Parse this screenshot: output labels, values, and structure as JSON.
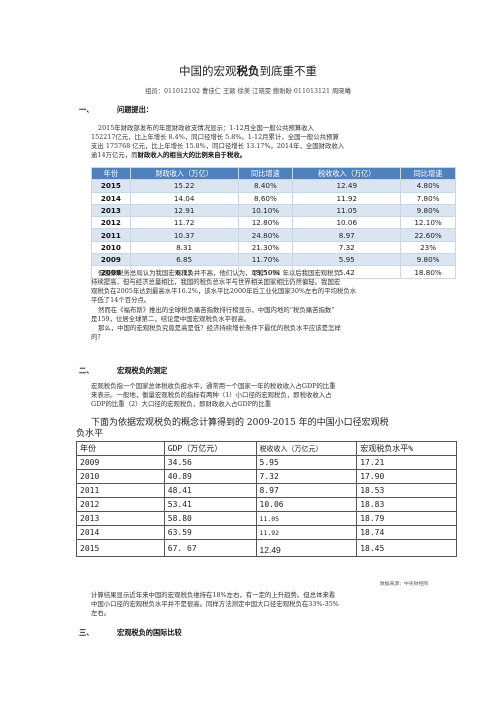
{
  "title_prefix": "中国的宏观",
  "title_bold": "税负",
  "title_suffix": "到底重不重",
  "authors": "组员：011012102 曹佳仁  王颖  徐美  江晓雯  鲍盼盼  011013121 周晓曦",
  "section1": {
    "num": "一、",
    "title": "问题提出："
  },
  "para1_lines": [
    "2015年财政部发布的年度财政收支情况显示：1-12月全国一般公共预算收入",
    "152217亿元，比上年增长 8.4%，同口径增长 5.8%。1-12月累计，全国一般公共预算",
    "支出 175768 亿元，比上年增长 15.8%，同口径增长 13.17%。2014年，全国财政收入",
    "逾14万亿元，而"
  ],
  "para1_bold": "财政收入的相当大的比例来自于税收。",
  "table1": {
    "headers": [
      "年份",
      "财政收入（万亿）",
      "同比增速",
      "税收收入（万亿）",
      "同比增速"
    ],
    "rows": [
      [
        "2015",
        "15.22",
        "8.40%",
        "12.49",
        "4.80%"
      ],
      [
        "2014",
        "14.04",
        "8.60%",
        "11.92",
        "7.80%"
      ],
      [
        "2013",
        "12.91",
        "10.10%",
        "11.05",
        "9.80%"
      ],
      [
        "2012",
        "11.72",
        "12.80%",
        "10.06",
        "12.10%"
      ],
      [
        "2011",
        "10.37",
        "24.80%",
        "8.97",
        "22.60%"
      ],
      [
        "2010",
        "8.31",
        "21.30%",
        "7.32",
        "23%"
      ],
      [
        "2009",
        "6.85",
        "11.70%",
        "5.95",
        "9.80%"
      ],
      [
        "2008",
        "6.13",
        "19.50%",
        "5.42",
        "18.80%"
      ]
    ]
  },
  "para2_lines": [
    "但国家税务总局认为我国宏观税负并不高，他们认为，尽管1994 年以后我国宏观税负",
    "持续提高，但与经济总量相比，我国的税负总水平与世界相关国家相比仍然偏轻。我国宏",
    "观税负在2005年达到最高水平16.2%，该水平比2000年后工业化国家30%左右的平均税负水",
    "平低了14个百分点。"
  ],
  "para3_lines": [
    "然而在《福布斯》推出的全球税负痛苦指数排行榜显示，中国内地的“税负痛苦指数”",
    "是159，位居全球第二，结论是中国宏观税负水平很高。"
  ],
  "para4_lines": [
    "那么，中国的宏观税负究竟是高是低？经济持续增长条件下最优的税负水平应该是怎样",
    "的？"
  ],
  "section2": {
    "num": "二、",
    "title": "宏观税负的测定"
  },
  "para5_lines": [
    "宏观税负指一个国家总体税收负担水平，通常用一个国家一年的税收收入占GDP的比重",
    "来表示。一般地，衡量宏观税负的指标有两种（1）小口径的宏观税负，即税收收入占",
    "GDP的比重（2）大口径的宏观税负，即财政收入占GDP的比重"
  ],
  "caption2_lines": [
    "下面为依据宏观税负的概念计算得到的 2009-2015 年的中国小口径宏观税",
    "负水平"
  ],
  "table2": {
    "headers": [
      "年份",
      "GDP（万亿元）",
      "税收收入（万亿元）",
      "宏观税负水平%"
    ],
    "rows": [
      [
        "2009",
        "34.56",
        "5.95",
        "17.21"
      ],
      [
        "2010",
        "40.89",
        "7.32",
        "17.90"
      ],
      [
        "2011",
        "48.41",
        "8.97",
        "18.53"
      ],
      [
        "2012",
        "53.41",
        "10.06",
        "18.83"
      ],
      [
        "2013",
        "58.80",
        "11.05",
        "18.79"
      ],
      [
        "2014",
        "63.59",
        "11.92",
        "18.74"
      ],
      [
        "2015",
        "67. 67",
        "12.49",
        "18.45"
      ]
    ]
  },
  "source_note": "数据来源：中央财经网",
  "para6_lines": [
    "计算结果显示近年来中国的宏观税负维持在18%左右，有一定的上升趋势。但总体来看",
    "中国小口径的宏观税负水平并不是很高。同样方法测定中国大口径宏观税负在33%-35%",
    "左右。"
  ],
  "section3": {
    "num": "三、",
    "title": "宏观税负的国际比较"
  },
  "colors": {
    "header_blue": "#4f81bd",
    "row_alt": "#dbe5f1"
  }
}
